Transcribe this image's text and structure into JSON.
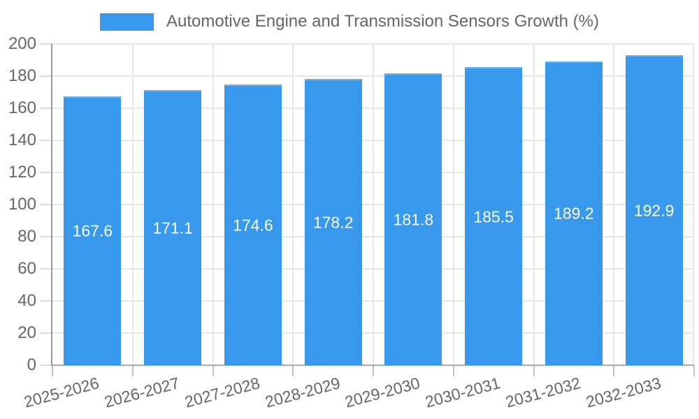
{
  "legend": {
    "label": "Automotive Engine and Transmission Sensors Growth (%)",
    "swatch_color": "#3899EC"
  },
  "chart_data": {
    "type": "bar",
    "title": "Automotive Engine and Transmission Sensors Growth (%)",
    "categories": [
      "2025-2026",
      "2026-2027",
      "2027-2028",
      "2028-2029",
      "2029-2030",
      "2030-2031",
      "2031-2032",
      "2032-2033"
    ],
    "values": [
      167.6,
      171.1,
      174.6,
      178.2,
      181.8,
      185.5,
      189.2,
      192.9
    ],
    "value_labels": [
      "167.6",
      "171.1",
      "174.6",
      "178.2",
      "181.8",
      "185.5",
      "189.2",
      "192.9"
    ],
    "ytick_labels": [
      "0",
      "20",
      "40",
      "60",
      "80",
      "100",
      "120",
      "140",
      "160",
      "180",
      "200"
    ],
    "xlabel": "",
    "ylabel": "",
    "ylim": [
      0,
      200
    ],
    "ytick_step": 20,
    "grid": true,
    "legend_position": "top",
    "bar_color": "#3899EC",
    "value_label_color": "#FFFFFF"
  },
  "colors": {
    "background": "#FFFFFF",
    "bar": "#3899EC",
    "grid": "#E6E6E6",
    "axis": "#999999",
    "text": "#666666",
    "value_text": "#FFFFFF"
  }
}
